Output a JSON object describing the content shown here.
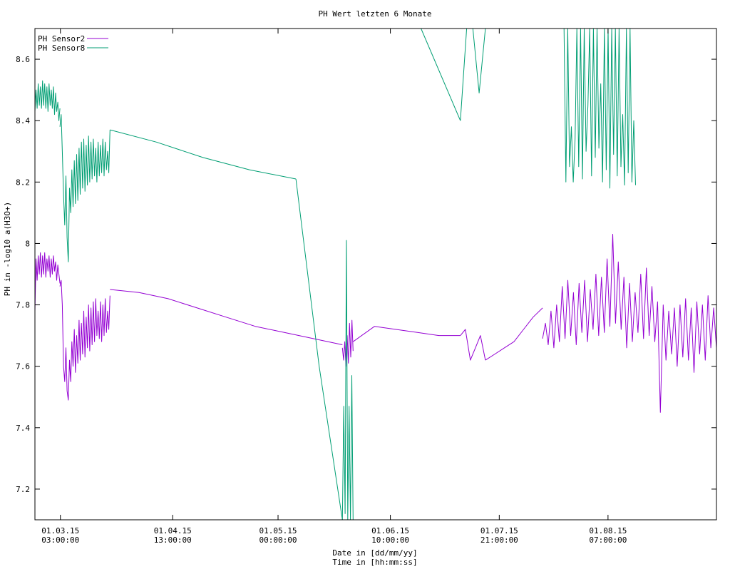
{
  "chart_data": {
    "type": "line",
    "title": "PH Wert letzten 6 Monate",
    "ylabel": "PH in -log10 a(H3O+)",
    "xlabel_line1": "Date in [dd/mm/yy]",
    "xlabel_line2": "Time in [hh:mm:ss]",
    "ylim": [
      7.1,
      8.7
    ],
    "xlim": [
      "2015-02-22 00:00",
      "2015-08-31 15:00"
    ],
    "y_ticks": [
      {
        "value": 7.2,
        "label": "7.2"
      },
      {
        "value": 7.4,
        "label": "7.4"
      },
      {
        "value": 7.6,
        "label": "7.6"
      },
      {
        "value": 7.8,
        "label": "7.8"
      },
      {
        "value": 8.0,
        "label": "8"
      },
      {
        "value": 8.2,
        "label": "8.2"
      },
      {
        "value": 8.4,
        "label": "8.4"
      },
      {
        "value": 8.6,
        "label": "8.6"
      }
    ],
    "x_ticks": [
      {
        "x": "2015-03-01 03:00",
        "date": "01.03.15",
        "time": "03:00:00"
      },
      {
        "x": "2015-04-01 13:00",
        "date": "01.04.15",
        "time": "13:00:00"
      },
      {
        "x": "2015-05-01 00:00",
        "date": "01.05.15",
        "time": "00:00:00"
      },
      {
        "x": "2015-06-01 10:00",
        "date": "01.06.15",
        "time": "10:00:00"
      },
      {
        "x": "2015-07-01 21:00",
        "date": "01.07.15",
        "time": "21:00:00"
      },
      {
        "x": "2015-08-01 07:00",
        "date": "01.08.15",
        "time": "07:00:00"
      }
    ],
    "grid": false,
    "legend_position": "top-left",
    "series": [
      {
        "name": "PH Sensor2",
        "color": "#9400d3",
        "segments": [
          {
            "x_start": "2015-02-22 00:00",
            "x_end": "2015-03-01 00:00",
            "values": [
              7.78,
              7.95,
              7.88,
              7.96,
              7.9,
              7.97,
              7.89,
              7.96,
              7.9,
              7.97,
              7.89,
              7.95,
              7.91,
              7.96,
              7.89,
              7.95,
              7.9,
              7.96,
              7.91,
              7.94,
              7.88,
              7.93,
              7.9,
              7.87
            ]
          },
          {
            "x_start": "2015-03-01 00:00",
            "x_end": "2015-03-15 00:00",
            "values": [
              7.86,
              7.88,
              7.8,
              7.6,
              7.55,
              7.66,
              7.52,
              7.49,
              7.62,
              7.55,
              7.68,
              7.6,
              7.72,
              7.58,
              7.7,
              7.61,
              7.75,
              7.62,
              7.74,
              7.64,
              7.78,
              7.63,
              7.76,
              7.66,
              7.8,
              7.65,
              7.79,
              7.67,
              7.81,
              7.68,
              7.82,
              7.7,
              7.78,
              7.69,
              7.81,
              7.68,
              7.8,
              7.7,
              7.82,
              7.71,
              7.78,
              7.72,
              7.83
            ]
          },
          {
            "x_start": "2015-03-15 00:00",
            "x_end": "2015-05-19 00:00",
            "values": [
              7.85,
              7.84,
              7.82,
              7.79,
              7.76,
              7.73,
              7.71,
              7.69,
              7.67
            ]
          },
          {
            "x_start": "2015-05-19 00:00",
            "x_end": "2015-05-22 00:00",
            "values": [
              7.66,
              7.62,
              7.68,
              7.6,
              7.7,
              7.61,
              7.74,
              7.63,
              7.75,
              7.65
            ]
          },
          {
            "x_start": "2015-05-22 00:00",
            "x_end": "2015-06-21 00:00",
            "values": [
              7.68,
              7.73,
              7.72,
              7.71,
              7.7,
              7.7
            ]
          },
          {
            "x_start": "2015-06-21 00:00",
            "x_end": "2015-06-28 00:00",
            "values": [
              7.7,
              7.72,
              7.62,
              7.66,
              7.7,
              7.62
            ]
          },
          {
            "x_start": "2015-06-28 00:00",
            "x_end": "2015-07-14 00:00",
            "values": [
              7.62,
              7.64,
              7.66,
              7.68,
              7.72,
              7.76,
              7.79
            ]
          },
          {
            "x_start": "2015-07-14 00:00",
            "x_end": "2015-08-31 15:00",
            "values": [
              7.69,
              7.74,
              7.67,
              7.78,
              7.66,
              7.8,
              7.68,
              7.86,
              7.69,
              7.88,
              7.7,
              7.84,
              7.67,
              7.87,
              7.71,
              7.88,
              7.68,
              7.85,
              7.72,
              7.9,
              7.7,
              7.89,
              7.71,
              7.95,
              7.73,
              8.03,
              7.74,
              7.94,
              7.72,
              7.89,
              7.66,
              7.87,
              7.68,
              7.84,
              7.71,
              7.9,
              7.69,
              7.92,
              7.7,
              7.86,
              7.68,
              7.81,
              7.45,
              7.8,
              7.62,
              7.78,
              7.64,
              7.79,
              7.6,
              7.8,
              7.63,
              7.82,
              7.62,
              7.79,
              7.58,
              7.81,
              7.64,
              7.8,
              7.62,
              7.83,
              7.66,
              7.79,
              7.66
            ]
          }
        ]
      },
      {
        "name": "PH Sensor8",
        "color": "#009e73",
        "segments": [
          {
            "x_start": "2015-02-22 00:00",
            "x_end": "2015-03-01 00:00",
            "values": [
              8.43,
              8.5,
              8.44,
              8.52,
              8.45,
              8.51,
              8.44,
              8.53,
              8.45,
              8.52,
              8.44,
              8.51,
              8.43,
              8.52,
              8.45,
              8.5,
              8.44,
              8.51,
              8.42,
              8.49,
              8.43,
              8.46,
              8.4,
              8.44
            ]
          },
          {
            "x_start": "2015-03-01 00:00",
            "x_end": "2015-03-15 00:00",
            "values": [
              8.38,
              8.42,
              8.3,
              8.16,
              8.06,
              8.22,
              8.02,
              7.94,
              8.18,
              8.1,
              8.24,
              8.12,
              8.27,
              8.13,
              8.29,
              8.14,
              8.31,
              8.16,
              8.33,
              8.18,
              8.34,
              8.17,
              8.32,
              8.19,
              8.35,
              8.2,
              8.33,
              8.21,
              8.34,
              8.22,
              8.31,
              8.2,
              8.33,
              8.22,
              8.32,
              8.23,
              8.34,
              8.22,
              8.33,
              8.24,
              8.3,
              8.23,
              8.37
            ]
          },
          {
            "x_start": "2015-03-15 00:00",
            "x_end": "2015-05-06 00:00",
            "values": [
              8.37,
              8.33,
              8.28,
              8.24,
              8.21
            ]
          },
          {
            "x_start": "2015-05-06 00:00",
            "x_end": "2015-05-19 00:00",
            "values": [
              8.21,
              7.6,
              7.1
            ]
          },
          {
            "x_start": "2015-05-19 00:00",
            "x_end": "2015-05-22 00:00",
            "values": [
              7.1,
              7.47,
              7.12,
              8.01,
              7.1,
              7.47,
              7.1,
              7.57,
              7.1
            ]
          },
          {
            "x_start": "2015-06-10 00:00",
            "x_end": "2015-06-21 00:00",
            "values": [
              8.7,
              8.4
            ]
          },
          {
            "x_start": "2015-06-21 00:00",
            "x_end": "2015-06-28 00:00",
            "values": [
              8.4,
              8.7,
              8.7,
              8.49,
              8.7
            ]
          },
          {
            "x_start": "2015-07-20 00:00",
            "x_end": "2015-08-09 00:00",
            "values": [
              8.7,
              8.2,
              8.7,
              8.25,
              8.38,
              8.2,
              8.34,
              8.7,
              8.25,
              8.7,
              8.21,
              8.7,
              8.3,
              8.45,
              8.7,
              8.22,
              8.7,
              8.28,
              8.7,
              8.31,
              8.52,
              8.2,
              8.7,
              8.24,
              8.7,
              8.18,
              8.7,
              8.29,
              8.7,
              8.22,
              8.7,
              8.25,
              8.42,
              8.19,
              8.7,
              8.23,
              8.7,
              8.2,
              8.4,
              8.19
            ]
          }
        ]
      }
    ]
  }
}
